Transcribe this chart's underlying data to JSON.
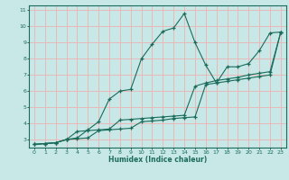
{
  "xlabel": "Humidex (Indice chaleur)",
  "bg_color": "#c8e8e8",
  "grid_color": "#e8b8b8",
  "line_color": "#1a6b5a",
  "xlim": [
    -0.5,
    23.5
  ],
  "ylim": [
    2.5,
    11.3
  ],
  "xticks": [
    0,
    1,
    2,
    3,
    4,
    5,
    6,
    7,
    8,
    9,
    10,
    11,
    12,
    13,
    14,
    15,
    16,
    17,
    18,
    19,
    20,
    21,
    22,
    23
  ],
  "yticks": [
    3,
    4,
    5,
    6,
    7,
    8,
    9,
    10,
    11
  ],
  "series1_x": [
    0,
    1,
    2,
    3,
    4,
    5,
    6,
    7,
    8,
    9,
    10,
    11,
    12,
    13,
    14,
    15,
    16,
    17,
    18,
    19,
    20,
    21,
    22,
    23
  ],
  "series1_y": [
    2.7,
    2.75,
    2.8,
    3.0,
    3.05,
    3.1,
    3.55,
    3.6,
    3.65,
    3.7,
    4.1,
    4.15,
    4.2,
    4.3,
    4.35,
    4.4,
    6.4,
    6.5,
    6.6,
    6.7,
    6.8,
    6.9,
    7.0,
    9.65
  ],
  "series2_x": [
    0,
    1,
    2,
    3,
    4,
    5,
    6,
    7,
    8,
    9,
    10,
    11,
    12,
    13,
    14,
    15,
    16,
    17,
    18,
    19,
    20,
    21,
    22,
    23
  ],
  "series2_y": [
    2.7,
    2.75,
    2.8,
    3.0,
    3.1,
    3.6,
    4.1,
    5.5,
    6.0,
    6.1,
    8.0,
    8.9,
    9.7,
    9.9,
    10.8,
    9.0,
    7.6,
    6.5,
    7.5,
    7.5,
    7.7,
    8.5,
    9.6,
    9.65
  ],
  "series3_x": [
    0,
    1,
    2,
    3,
    4,
    5,
    6,
    7,
    8,
    9,
    10,
    11,
    12,
    13,
    14,
    15,
    16,
    17,
    18,
    19,
    20,
    21,
    22,
    23
  ],
  "series3_y": [
    2.7,
    2.75,
    2.8,
    3.0,
    3.5,
    3.55,
    3.6,
    3.65,
    4.2,
    4.25,
    4.3,
    4.35,
    4.4,
    4.45,
    4.5,
    6.3,
    6.5,
    6.65,
    6.75,
    6.85,
    7.0,
    7.1,
    7.2,
    9.65
  ]
}
